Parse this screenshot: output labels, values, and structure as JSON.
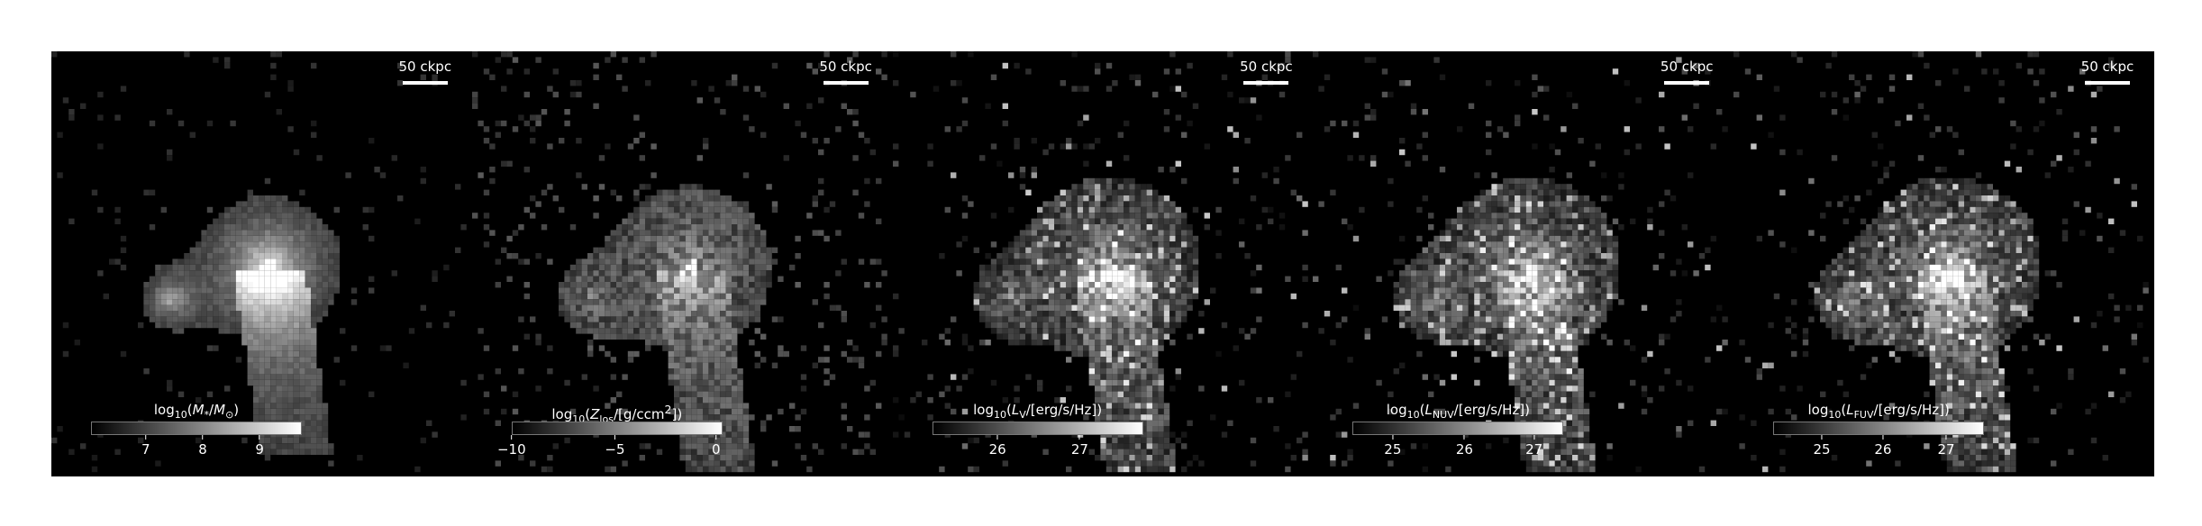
{
  "panels": [
    {
      "scale_label": "50 ckpc",
      "cbar_html": "log<sub>10</sub>(<i>M</i><sub>*</sub>/<i>M</i><sub>⊙</sub>)",
      "ticks": [
        "7",
        "8",
        "9"
      ],
      "tick_frac": [
        0.26,
        0.53,
        0.8
      ],
      "pattern": "mass"
    },
    {
      "scale_label": "50 ckpc",
      "cbar_html": "log<sub>10</sub>(<i>Z</i><sub>los</sub>/[g/ccm<sup>2</sup>])",
      "ticks": [
        "−10",
        "−5",
        "0"
      ],
      "tick_frac": [
        0.0,
        0.49,
        0.97
      ],
      "pattern": "metal"
    },
    {
      "scale_label": "50 ckpc",
      "cbar_html": "log<sub>10</sub>(<i>L</i><sub>V</sub>/[erg/s/Hz])",
      "ticks": [
        "26",
        "27"
      ],
      "tick_frac": [
        0.31,
        0.7
      ],
      "pattern": "lum"
    },
    {
      "scale_label": "50 ckpc",
      "cbar_html": "log<sub>10</sub>(<i>L</i><sub>NUV</sub>/[erg/s/Hz])",
      "ticks": [
        "25",
        "26",
        "27"
      ],
      "tick_frac": [
        0.19,
        0.53,
        0.86
      ],
      "pattern": "lum"
    },
    {
      "scale_label": "50 ckpc",
      "cbar_html": "log<sub>10</sub>(<i>L</i><sub>FUV</sub>/[erg/s/Hz])",
      "ticks": [
        "25",
        "26",
        "27"
      ],
      "tick_frac": [
        0.23,
        0.52,
        0.82
      ],
      "pattern": "lum"
    }
  ]
}
